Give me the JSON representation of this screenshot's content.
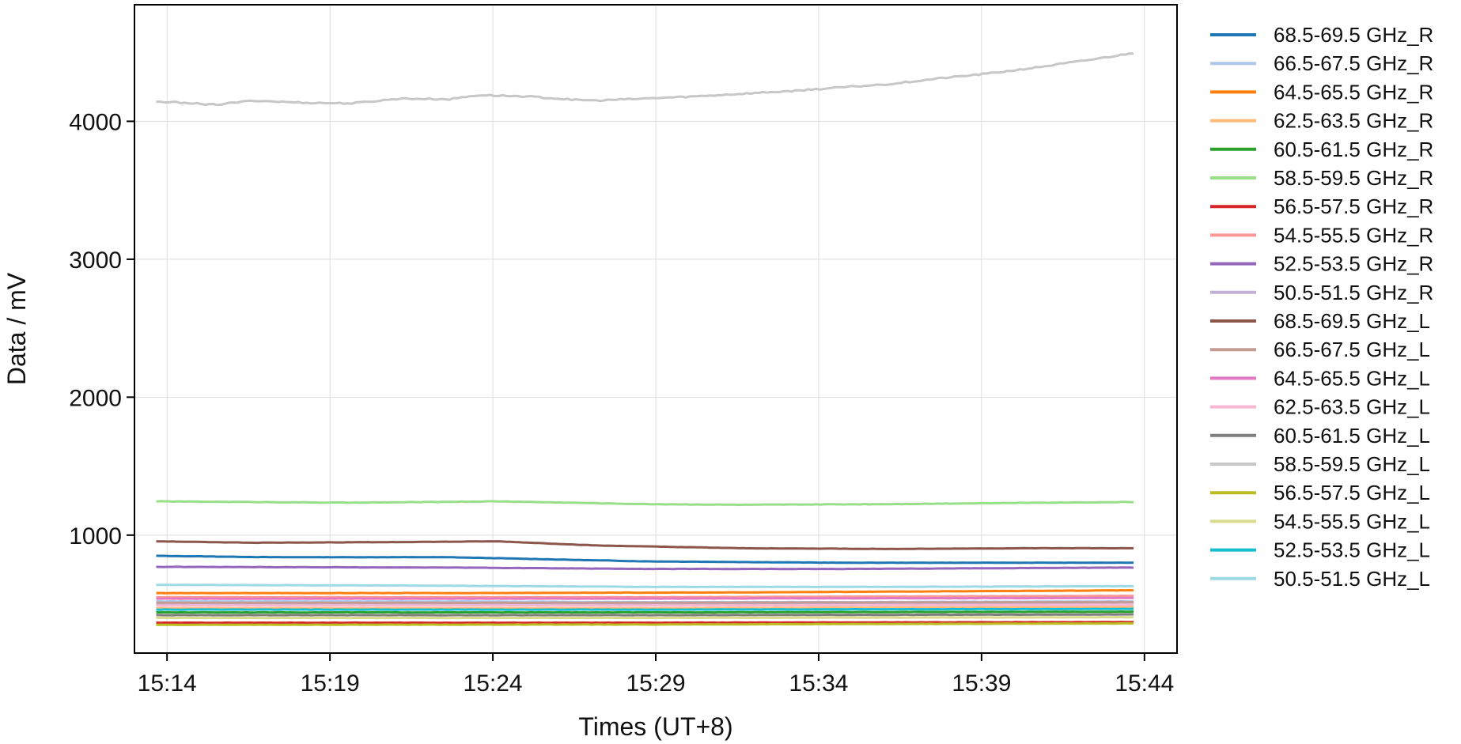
{
  "chart_data": {
    "type": "line",
    "xlabel": "Times (UT+8)",
    "ylabel": "Data / mV",
    "x_ticks": [
      "15:14",
      "15:19",
      "15:24",
      "15:29",
      "15:34",
      "15:39",
      "15:44"
    ],
    "x_range": [
      "15:13",
      "15:45"
    ],
    "x_data_range": [
      "15:13:40",
      "15:43:40"
    ],
    "y_ticks": [
      1000,
      2000,
      3000,
      4000
    ],
    "ylim": [
      145,
      4845
    ],
    "grid": true,
    "legend_position": "right-outside",
    "series": [
      {
        "name": "68.5-69.5 GHz_R",
        "color": "#1f77b4",
        "values": [
          [
            0,
            850
          ],
          [
            0.12,
            840
          ],
          [
            0.3,
            840
          ],
          [
            0.5,
            810
          ],
          [
            0.7,
            800
          ],
          [
            0.85,
            800
          ],
          [
            1,
            800
          ]
        ]
      },
      {
        "name": "66.5-67.5 GHz_R",
        "color": "#aec7e8",
        "values": [
          [
            0,
            520
          ],
          [
            0.3,
            520
          ],
          [
            0.5,
            515
          ],
          [
            0.7,
            515
          ],
          [
            1,
            520
          ]
        ]
      },
      {
        "name": "64.5-65.5 GHz_R",
        "color": "#ff7f0e",
        "values": [
          [
            0,
            580
          ],
          [
            0.3,
            580
          ],
          [
            0.6,
            585
          ],
          [
            1,
            600
          ]
        ]
      },
      {
        "name": "62.5-63.5 GHz_R",
        "color": "#ffbb78",
        "values": [
          [
            0,
            470
          ],
          [
            0.5,
            470
          ],
          [
            1,
            480
          ]
        ]
      },
      {
        "name": "60.5-61.5 GHz_R",
        "color": "#2ca02c",
        "values": [
          [
            0,
            440
          ],
          [
            0.5,
            440
          ],
          [
            1,
            445
          ]
        ]
      },
      {
        "name": "58.5-59.5 GHz_R",
        "color": "#98df8a",
        "values": [
          [
            0,
            1245
          ],
          [
            0.1,
            1240
          ],
          [
            0.2,
            1235
          ],
          [
            0.35,
            1245
          ],
          [
            0.5,
            1225
          ],
          [
            0.6,
            1220
          ],
          [
            0.75,
            1225
          ],
          [
            0.9,
            1235
          ],
          [
            1,
            1240
          ]
        ]
      },
      {
        "name": "56.5-57.5 GHz_R",
        "color": "#d62728",
        "values": [
          [
            0,
            365
          ],
          [
            0.5,
            365
          ],
          [
            1,
            370
          ]
        ]
      },
      {
        "name": "54.5-55.5 GHz_R",
        "color": "#ff9896",
        "values": [
          [
            0,
            550
          ],
          [
            0.5,
            550
          ],
          [
            1,
            560
          ]
        ]
      },
      {
        "name": "52.5-53.5 GHz_R",
        "color": "#9467bd",
        "values": [
          [
            0,
            770
          ],
          [
            0.3,
            765
          ],
          [
            0.5,
            755
          ],
          [
            0.7,
            755
          ],
          [
            1,
            765
          ]
        ]
      },
      {
        "name": "50.5-51.5 GHz_R",
        "color": "#c5b0d5",
        "values": [
          [
            0,
            500
          ],
          [
            0.5,
            500
          ],
          [
            1,
            505
          ]
        ]
      },
      {
        "name": "68.5-69.5 GHz_L",
        "color": "#8c564b",
        "values": [
          [
            0,
            955
          ],
          [
            0.1,
            945
          ],
          [
            0.25,
            950
          ],
          [
            0.35,
            955
          ],
          [
            0.45,
            925
          ],
          [
            0.6,
            905
          ],
          [
            0.75,
            900
          ],
          [
            0.9,
            905
          ],
          [
            1,
            905
          ]
        ]
      },
      {
        "name": "66.5-67.5 GHz_L",
        "color": "#c49c94",
        "values": [
          [
            0,
            510
          ],
          [
            0.5,
            510
          ],
          [
            1,
            515
          ]
        ]
      },
      {
        "name": "64.5-65.5 GHz_L",
        "color": "#e377c2",
        "values": [
          [
            0,
            540
          ],
          [
            0.5,
            540
          ],
          [
            1,
            545
          ]
        ]
      },
      {
        "name": "62.5-63.5 GHz_L",
        "color": "#f7b6d2",
        "values": [
          [
            0,
            490
          ],
          [
            0.5,
            490
          ],
          [
            1,
            495
          ]
        ]
      },
      {
        "name": "60.5-61.5 GHz_L",
        "color": "#7f7f7f",
        "values": [
          [
            0,
            420
          ],
          [
            0.5,
            420
          ],
          [
            1,
            425
          ]
        ]
      },
      {
        "name": "58.5-59.5 GHz_L",
        "color": "#c7c7c7",
        "values": [
          [
            0,
            4140
          ],
          [
            0.03,
            4135
          ],
          [
            0.06,
            4120
          ],
          [
            0.1,
            4150
          ],
          [
            0.15,
            4135
          ],
          [
            0.2,
            4130
          ],
          [
            0.25,
            4165
          ],
          [
            0.3,
            4160
          ],
          [
            0.33,
            4190
          ],
          [
            0.38,
            4180
          ],
          [
            0.42,
            4160
          ],
          [
            0.45,
            4150
          ],
          [
            0.5,
            4165
          ],
          [
            0.55,
            4180
          ],
          [
            0.6,
            4200
          ],
          [
            0.65,
            4220
          ],
          [
            0.7,
            4245
          ],
          [
            0.75,
            4270
          ],
          [
            0.8,
            4310
          ],
          [
            0.85,
            4345
          ],
          [
            0.9,
            4390
          ],
          [
            0.95,
            4440
          ],
          [
            1,
            4495
          ]
        ]
      },
      {
        "name": "56.5-57.5 GHz_L",
        "color": "#bcbd22",
        "values": [
          [
            0,
            350
          ],
          [
            0.5,
            352
          ],
          [
            1,
            360
          ]
        ]
      },
      {
        "name": "54.5-55.5 GHz_L",
        "color": "#dbdb8d",
        "values": [
          [
            0,
            400
          ],
          [
            0.5,
            400
          ],
          [
            1,
            405
          ]
        ]
      },
      {
        "name": "52.5-53.5 GHz_L",
        "color": "#17becf",
        "values": [
          [
            0,
            460
          ],
          [
            0.5,
            460
          ],
          [
            1,
            465
          ]
        ]
      },
      {
        "name": "50.5-51.5 GHz_L",
        "color": "#9edae5",
        "values": [
          [
            0,
            640
          ],
          [
            0.25,
            635
          ],
          [
            0.5,
            625
          ],
          [
            0.75,
            625
          ],
          [
            1,
            630
          ]
        ]
      }
    ]
  }
}
